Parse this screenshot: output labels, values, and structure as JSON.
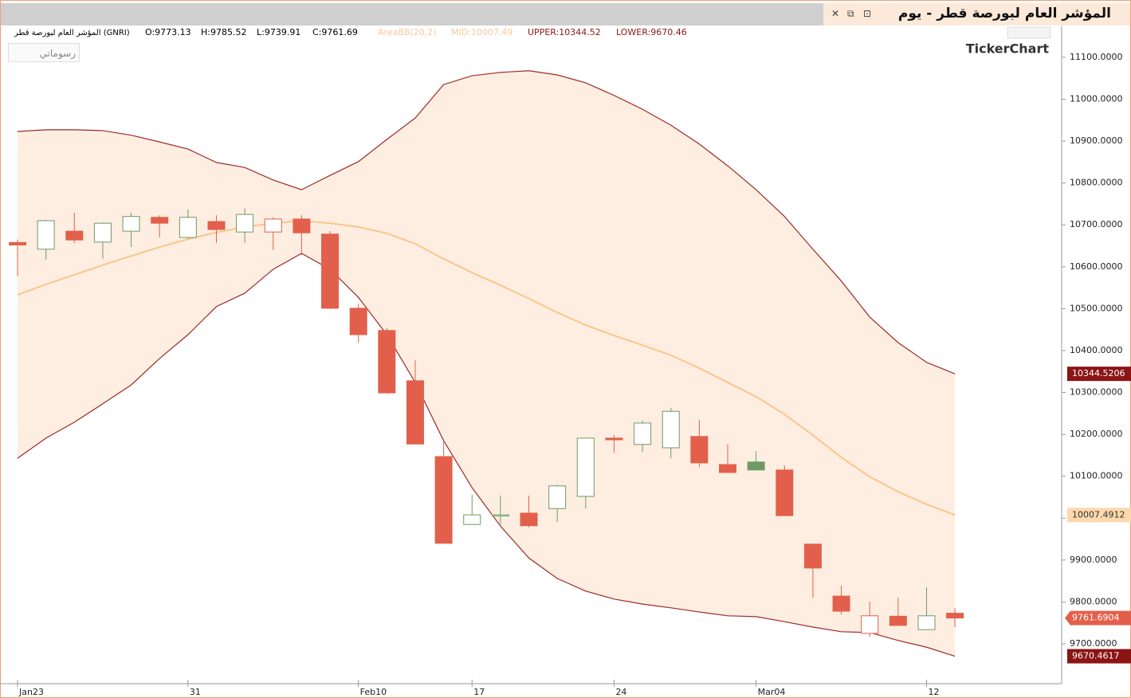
{
  "chart_data": {
    "type": "candlestick",
    "title": "المؤشر العام لبورصة قطر - يوم",
    "symbol": "المؤشر العام لبورصة قطر (GNRI)",
    "ohlc_labels": [
      "O:9773.13",
      "H:9785.52",
      "L:9739.91",
      "C:9761.69"
    ],
    "legend": [
      "AreaBB(20,2)",
      "MID:10007.49",
      "UPPER:10344.52",
      "LOWER:9670.46"
    ],
    "brand": "TickerChart",
    "button": "رسوماتي",
    "categories": [
      "Jan23",
      null,
      null,
      null,
      null,
      null,
      "31",
      null,
      null,
      null,
      null,
      null,
      "Feb10",
      null,
      null,
      null,
      "17",
      null,
      null,
      null,
      null,
      "24",
      null,
      null,
      null,
      null,
      "Mar04",
      null,
      null,
      null,
      null,
      null,
      "12",
      null
    ],
    "open": [
      10658,
      10642,
      10685,
      10659,
      10685,
      10718,
      10670,
      10708,
      10683,
      10683,
      10714,
      10678,
      10501,
      10448,
      10328,
      10147,
      9985,
      10006,
      10012,
      10023,
      10052,
      10191,
      10176,
      10168,
      10195,
      10128,
      10134,
      10115,
      9938,
      9814,
      9725,
      9766,
      9734,
      9773.13
    ],
    "high": [
      10665,
      10712,
      10729,
      10706,
      10729,
      10723,
      10737,
      10723,
      10740,
      10718,
      10723,
      10685,
      10512,
      10453,
      10377,
      10181,
      10056,
      10054,
      10054,
      10080,
      10191,
      10198,
      10233,
      10263,
      10234,
      10176,
      10160,
      10126,
      9938,
      9839,
      9801,
      9810,
      9835,
      9785.52
    ],
    "low": [
      10577,
      10617,
      10657,
      10619,
      10647,
      10670,
      10666,
      10657,
      10657,
      10640,
      10628,
      10499,
      10419,
      10297,
      10177,
      9940,
      9985,
      9985,
      9978,
      9991,
      10023,
      10156,
      10158,
      10143,
      10122,
      10109,
      10115,
      10006,
      9810,
      9770,
      9717,
      9744,
      9734,
      9739.91
    ],
    "close": [
      10652,
      10710,
      10664,
      10704,
      10720,
      10704,
      10718,
      10689,
      10725,
      10714,
      10681,
      10501,
      10438,
      10299,
      10177,
      9940,
      10008,
      10008,
      9982,
      10077,
      10191,
      10187,
      10227,
      10255,
      10132,
      10109,
      10115,
      10006,
      9881,
      9778,
      9767,
      9744,
      9767,
      9761.6904
    ],
    "up_color": "#6f9a64",
    "down_color": "#e2604b",
    "band_fill": "#fdeee1",
    "series": [
      {
        "color": "#9e2a2a",
        "label_color": "#8b1515",
        "values": [
          10923,
          10927,
          10927,
          10925,
          10914,
          10898,
          10881,
          10849,
          10837,
          10807,
          10784,
          10818,
          10851,
          10904,
          10955,
          11035,
          11056,
          11064,
          11068,
          11058,
          11039,
          11009,
          10976,
          10938,
          10893,
          10841,
          10784,
          10720,
          10642,
          10566,
          10480,
          10419,
          10372,
          10344.5206
        ]
      },
      {
        "color": "#fbc58c",
        "label_color": "#fcd8ad",
        "values": [
          10533,
          10558,
          10581,
          10604,
          10626,
          10647,
          10666,
          10682,
          10695,
          10704,
          10710,
          10704,
          10695,
          10680,
          10655,
          10619,
          10586,
          10556,
          10524,
          10491,
          10461,
          10436,
          10413,
          10389,
          10358,
          10324,
          10290,
          10248,
          10198,
          10145,
          10099,
          10063,
          10033,
          10007.4912
        ]
      },
      {
        "color": "#9e2a2a",
        "label_color": "#8b1515",
        "values": [
          10143,
          10191,
          10229,
          10273,
          10318,
          10381,
          10438,
          10505,
          10537,
          10594,
          10632,
          10594,
          10527,
          10438,
          10324,
          10185,
          10073,
          9981,
          9905,
          9856,
          9826,
          9807,
          9795,
          9786,
          9776,
          9767,
          9765,
          9753,
          9740,
          9729,
          9727,
          9708,
          9692,
          9670.4617
        ]
      }
    ],
    "ylim": [
      9605,
      11174
    ],
    "yticks": [
      {
        "value": 9700,
        "label": "9700.0000"
      },
      {
        "value": 9800,
        "label": "9800.0000"
      },
      {
        "value": 9900,
        "label": "9900.0000"
      },
      {
        "value": 10000,
        "label": "10000.0000"
      },
      {
        "value": 10100,
        "label": "10100.0000"
      },
      {
        "value": 10200,
        "label": "10200.0000"
      },
      {
        "value": 10300,
        "label": "10300.0000"
      },
      {
        "value": 10400,
        "label": "10400.0000"
      },
      {
        "value": 10500,
        "label": "10500.0000"
      },
      {
        "value": 10600,
        "label": "10600.0000"
      },
      {
        "value": 10700,
        "label": "10700.0000"
      },
      {
        "value": 10800,
        "label": "10800.0000"
      },
      {
        "value": 10900,
        "label": "10900.0000"
      },
      {
        "value": 11000,
        "label": "11000.0000"
      },
      {
        "value": 11100,
        "label": "11100.0000"
      }
    ]
  }
}
